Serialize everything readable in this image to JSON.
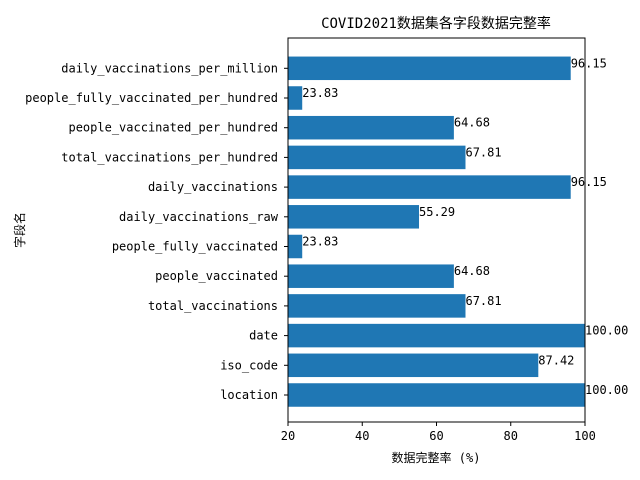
{
  "chart_data": {
    "type": "bar",
    "orientation": "horizontal",
    "title": "COVID2021数据集各字段数据完整率",
    "xlabel": "数据完整率 (%)",
    "ylabel": "字段名",
    "xlim": [
      20,
      100
    ],
    "xticks": [
      "20",
      "40",
      "60",
      "80",
      "100"
    ],
    "grid": false,
    "bar_color": "#1f77b4",
    "categories": [
      "location",
      "iso_code",
      "date",
      "total_vaccinations",
      "people_vaccinated",
      "people_fully_vaccinated",
      "daily_vaccinations_raw",
      "daily_vaccinations",
      "total_vaccinations_per_hundred",
      "people_vaccinated_per_hundred",
      "people_fully_vaccinated_per_hundred",
      "daily_vaccinations_per_million"
    ],
    "values": [
      100.0,
      87.42,
      100.0,
      67.81,
      64.68,
      23.83,
      55.29,
      96.15,
      67.81,
      64.68,
      23.83,
      96.15
    ],
    "data_labels": [
      "100.00",
      "87.42",
      "100.00",
      "67.81",
      "64.68",
      "23.83",
      "55.29",
      "96.15",
      "67.81",
      "64.68",
      "23.83",
      "96.15"
    ]
  }
}
